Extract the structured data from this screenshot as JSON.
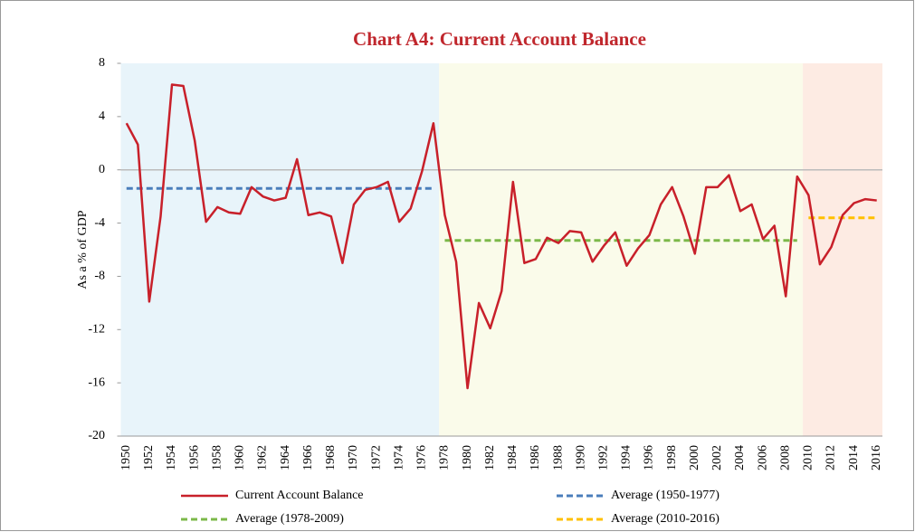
{
  "chart_data": {
    "type": "line",
    "title": "Chart A4: Current Account Balance",
    "y_label": "As a % of GDP",
    "categories": [
      1950,
      null,
      1952,
      null,
      1954,
      null,
      1956,
      null,
      1958,
      null,
      1960,
      null,
      1962,
      null,
      1964,
      null,
      1966,
      null,
      1968,
      null,
      1970,
      null,
      1972,
      null,
      1974,
      null,
      1976,
      null,
      1978,
      null,
      1980,
      null,
      1982,
      null,
      1984,
      null,
      1986,
      null,
      1988,
      null,
      1990,
      null,
      1992,
      null,
      1994,
      null,
      1996,
      null,
      1998,
      null,
      2000,
      null,
      2002,
      null,
      2004,
      null,
      2006,
      null,
      2008,
      null,
      2010,
      null,
      2012,
      null,
      2014,
      null,
      2016
    ],
    "ylim": [
      -20,
      8
    ],
    "yticks": [
      -20,
      -16,
      -12,
      -8,
      -4,
      0,
      4,
      8
    ],
    "zero_line": true,
    "legend": "bottom",
    "series": [
      {
        "name": "Current Account Balance",
        "color": "#c8202a",
        "dash": false,
        "values": [
          3.5,
          1.9,
          -9.9,
          -3.5,
          6.4,
          6.3,
          2.2,
          -3.9,
          -2.8,
          -3.2,
          -3.3,
          -1.3,
          -2.0,
          -2.3,
          -2.1,
          0.8,
          -3.4,
          -3.2,
          -3.5,
          -7.0,
          -2.6,
          -1.5,
          -1.3,
          -0.9,
          -3.9,
          -2.9,
          -0.1,
          3.5,
          -3.4,
          -6.9,
          -16.4,
          -10.0,
          -11.9,
          -9.1,
          -0.9,
          -7.0,
          -6.7,
          -5.1,
          -5.5,
          -4.6,
          -4.7,
          -6.9,
          -5.7,
          -4.7,
          -7.2,
          -5.9,
          -4.9,
          -2.6,
          -1.3,
          -3.5,
          -6.3,
          -1.3,
          -1.3,
          -0.4,
          -3.1,
          -2.6,
          -5.2,
          -4.2,
          -9.5,
          -0.5,
          -1.9,
          -7.1,
          -5.8,
          -3.4,
          -2.5,
          -2.2,
          -2.3
        ]
      },
      {
        "name": "Average (1950-1977)",
        "color": "#4a7ebb",
        "dash": true,
        "background": "#e8f4fa",
        "values": [
          -1.4,
          -1.4,
          -1.4,
          -1.4,
          -1.4,
          -1.4,
          -1.4,
          -1.4,
          -1.4,
          -1.4,
          -1.4,
          -1.4,
          -1.4,
          -1.4,
          -1.4,
          -1.4,
          -1.4,
          -1.4,
          -1.4,
          -1.4,
          -1.4,
          -1.4,
          -1.4,
          -1.4,
          -1.4,
          -1.4,
          -1.4,
          -1.4,
          null,
          null,
          null,
          null,
          null,
          null,
          null,
          null,
          null,
          null,
          null,
          null,
          null,
          null,
          null,
          null,
          null,
          null,
          null,
          null,
          null,
          null,
          null,
          null,
          null,
          null,
          null,
          null,
          null,
          null,
          null,
          null,
          null,
          null,
          null,
          null,
          null,
          null,
          null
        ]
      },
      {
        "name": "Average (1978-2009)",
        "color": "#7cb94a",
        "dash": true,
        "background": "#fafbea",
        "values": [
          null,
          null,
          null,
          null,
          null,
          null,
          null,
          null,
          null,
          null,
          null,
          null,
          null,
          null,
          null,
          null,
          null,
          null,
          null,
          null,
          null,
          null,
          null,
          null,
          null,
          null,
          null,
          null,
          -5.3,
          -5.3,
          -5.3,
          -5.3,
          -5.3,
          -5.3,
          -5.3,
          -5.3,
          -5.3,
          -5.3,
          -5.3,
          -5.3,
          -5.3,
          -5.3,
          -5.3,
          -5.3,
          -5.3,
          -5.3,
          -5.3,
          -5.3,
          -5.3,
          -5.3,
          -5.3,
          -5.3,
          -5.3,
          -5.3,
          -5.3,
          -5.3,
          -5.3,
          -5.3,
          -5.3,
          -5.3,
          null,
          null,
          null,
          null,
          null,
          null,
          null
        ]
      },
      {
        "name": "Average (2010-2016)",
        "color": "#ffc000",
        "dash": true,
        "background": "#fdebe3",
        "values": [
          null,
          null,
          null,
          null,
          null,
          null,
          null,
          null,
          null,
          null,
          null,
          null,
          null,
          null,
          null,
          null,
          null,
          null,
          null,
          null,
          null,
          null,
          null,
          null,
          null,
          null,
          null,
          null,
          null,
          null,
          null,
          null,
          null,
          null,
          null,
          null,
          null,
          null,
          null,
          null,
          null,
          null,
          null,
          null,
          null,
          null,
          null,
          null,
          null,
          null,
          null,
          null,
          null,
          null,
          null,
          null,
          null,
          null,
          null,
          null,
          -3.6,
          -3.6,
          -3.6,
          -3.6,
          -3.6,
          -3.6,
          -3.6
        ]
      }
    ]
  }
}
